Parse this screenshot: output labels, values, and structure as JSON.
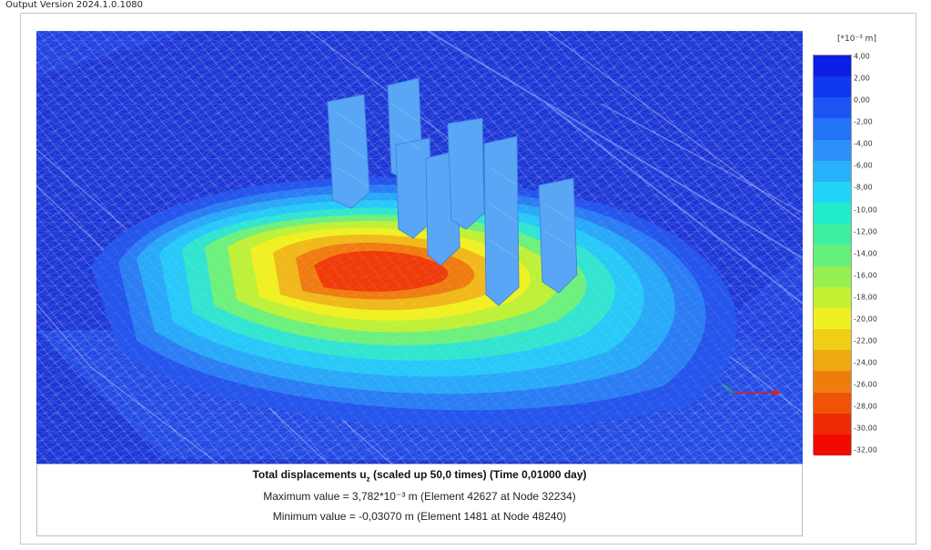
{
  "window": {
    "version_label": "Output Version 2024.1.0.1080"
  },
  "legend": {
    "unit": "[*10⁻³ m]",
    "ticks": [
      "4,00",
      "2,00",
      "0,00",
      "-2,00",
      "-4,00",
      "-6,00",
      "-8,00",
      "-10,00",
      "-12,00",
      "-14,00",
      "-16,00",
      "-18,00",
      "-20,00",
      "-22,00",
      "-24,00",
      "-26,00",
      "-28,00",
      "-30,00",
      "-32,00"
    ],
    "colors": [
      "#0a1ee6",
      "#1038ee",
      "#1a55f2",
      "#2274f6",
      "#2a90f8",
      "#28b0f8",
      "#22d4f6",
      "#20eccc",
      "#3cf0a0",
      "#64f07a",
      "#94f052",
      "#c4f032",
      "#f0f020",
      "#f0ce18",
      "#f0a810",
      "#f07c0c",
      "#f05208",
      "#f02a04",
      "#f00a00"
    ]
  },
  "result": {
    "title": "Total displacements u",
    "title_sub": "z",
    "title_rest": " (scaled up 50,0 times) (Time 0,01000 day)",
    "max_line": "Maximum value = 3,782*10⁻³ m (Element 42627 at Node 32234)",
    "min_line": "Minimum value = -0,03070 m (Element 1481 at Node 48240)"
  },
  "viewport": {
    "background_color": "#1f3fe0",
    "contour_colors": [
      "#2060f0",
      "#2a90f8",
      "#28c8f8",
      "#30eccc",
      "#78f070",
      "#c8f032",
      "#f0f020",
      "#f0b018",
      "#f07010",
      "#f03008"
    ],
    "pile_color": "#5aa6f6",
    "axis_icons": [
      "axis-x-icon",
      "axis-y-icon",
      "axis-z-icon"
    ]
  }
}
